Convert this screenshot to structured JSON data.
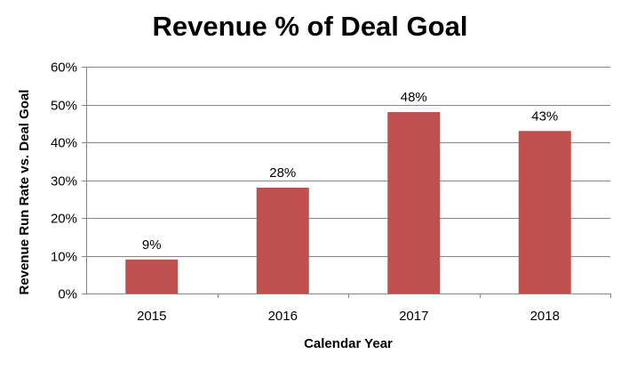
{
  "chart_data": {
    "type": "bar",
    "title": "Revenue % of Deal Goal",
    "xlabel": "Calendar Year",
    "ylabel": "Revenue Run Rate vs. Deal Goal",
    "categories": [
      "2015",
      "2016",
      "2017",
      "2018"
    ],
    "values": [
      9,
      28,
      48,
      43
    ],
    "data_labels": [
      "9%",
      "28%",
      "48%",
      "43%"
    ],
    "ylim": [
      0,
      60
    ],
    "y_ticks": [
      0,
      10,
      20,
      30,
      40,
      50,
      60
    ],
    "y_tick_labels": [
      "0%",
      "10%",
      "20%",
      "30%",
      "40%",
      "50%",
      "60%"
    ],
    "grid": true,
    "legend": "none",
    "colors": {
      "bar": "#c0504d",
      "grid": "#868686",
      "axis": "#868686"
    }
  }
}
